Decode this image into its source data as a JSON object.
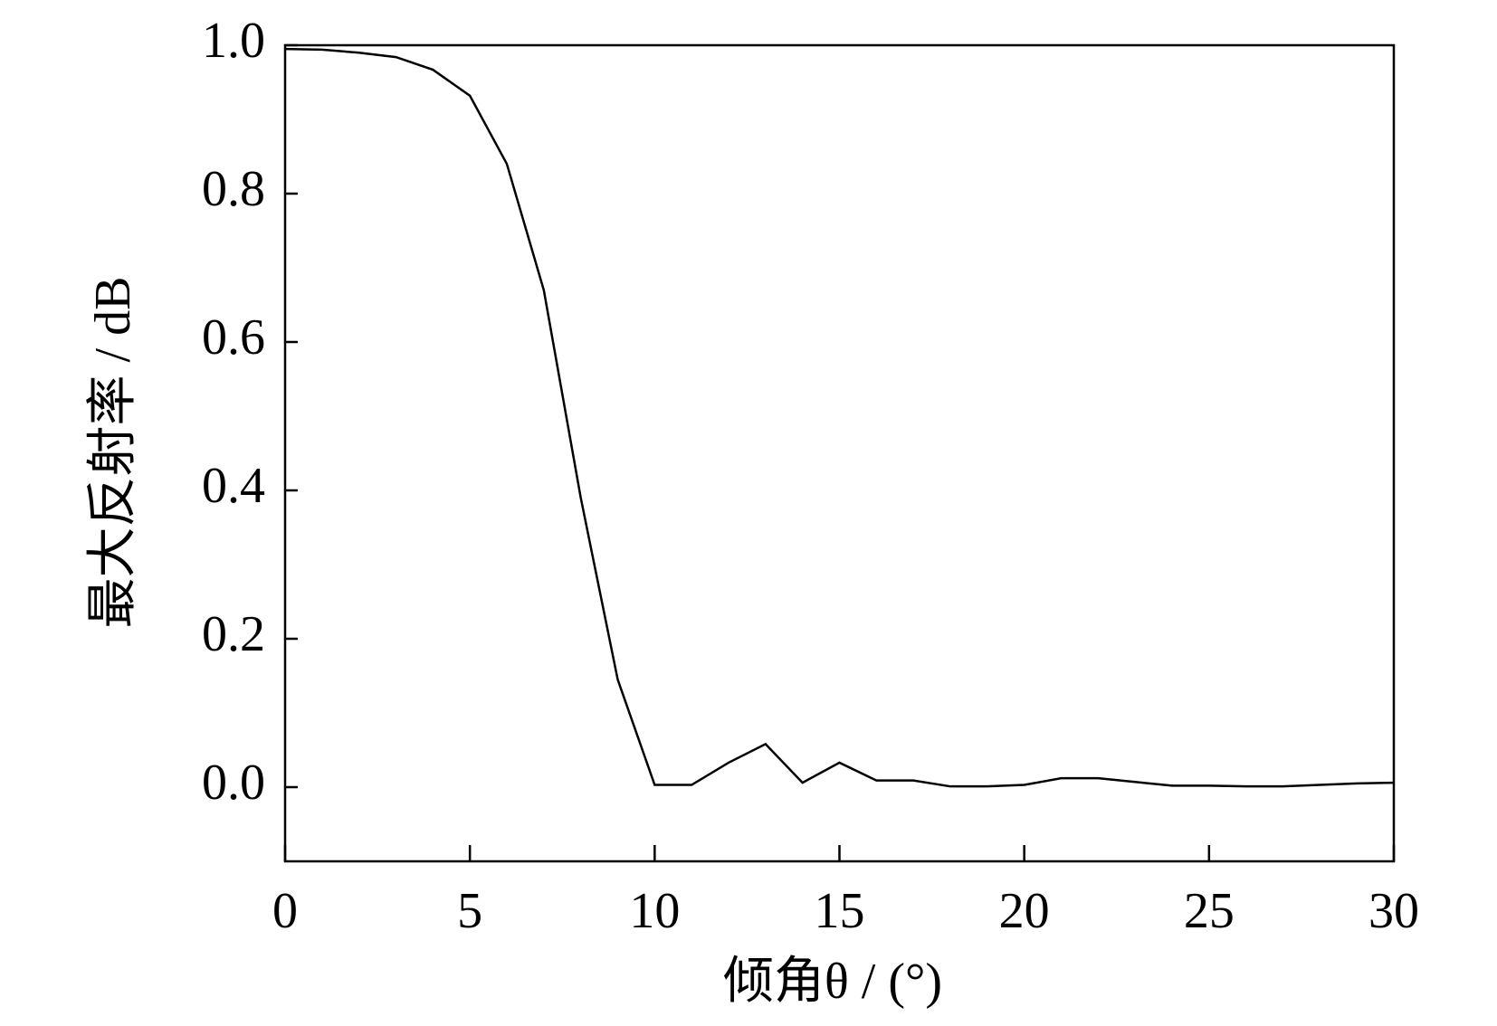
{
  "chart_data": {
    "type": "line",
    "xlabel": "倾角θ / (°)",
    "ylabel": "最大反射率 / dB",
    "x": [
      0,
      1,
      2,
      3,
      4,
      5,
      6,
      7,
      8,
      9,
      10,
      11,
      12,
      13,
      14,
      15,
      16,
      17,
      18,
      19,
      20,
      21,
      22,
      23,
      24,
      25,
      26,
      27,
      28,
      29,
      30
    ],
    "series": [
      {
        "color": "#000000",
        "values": [
          0.995,
          0.994,
          0.99,
          0.984,
          0.967,
          0.932,
          0.84,
          0.67,
          0.39,
          0.145,
          0.003,
          0.003,
          0.033,
          0.058,
          0.006,
          0.033,
          0.009,
          0.009,
          0.001,
          0.001,
          0.003,
          0.012,
          0.012,
          0.007,
          0.002,
          0.002,
          0.001,
          0.001,
          0.003,
          0.005,
          0.006
        ]
      }
    ],
    "xlim": [
      0,
      30
    ],
    "xticks": [
      0,
      5,
      10,
      15,
      20,
      25,
      30
    ],
    "ylim": [
      -0.1,
      1.0
    ],
    "yticks": [
      {
        "value": 0,
        "label": "0.0"
      },
      {
        "value": 0.2,
        "label": "0.2"
      },
      {
        "value": 0.4,
        "label": "0.4"
      },
      {
        "value": 0.6,
        "label": "0.6"
      },
      {
        "value": 0.8,
        "label": "0.8"
      },
      {
        "value": 1.0,
        "label": "1.0"
      }
    ]
  }
}
